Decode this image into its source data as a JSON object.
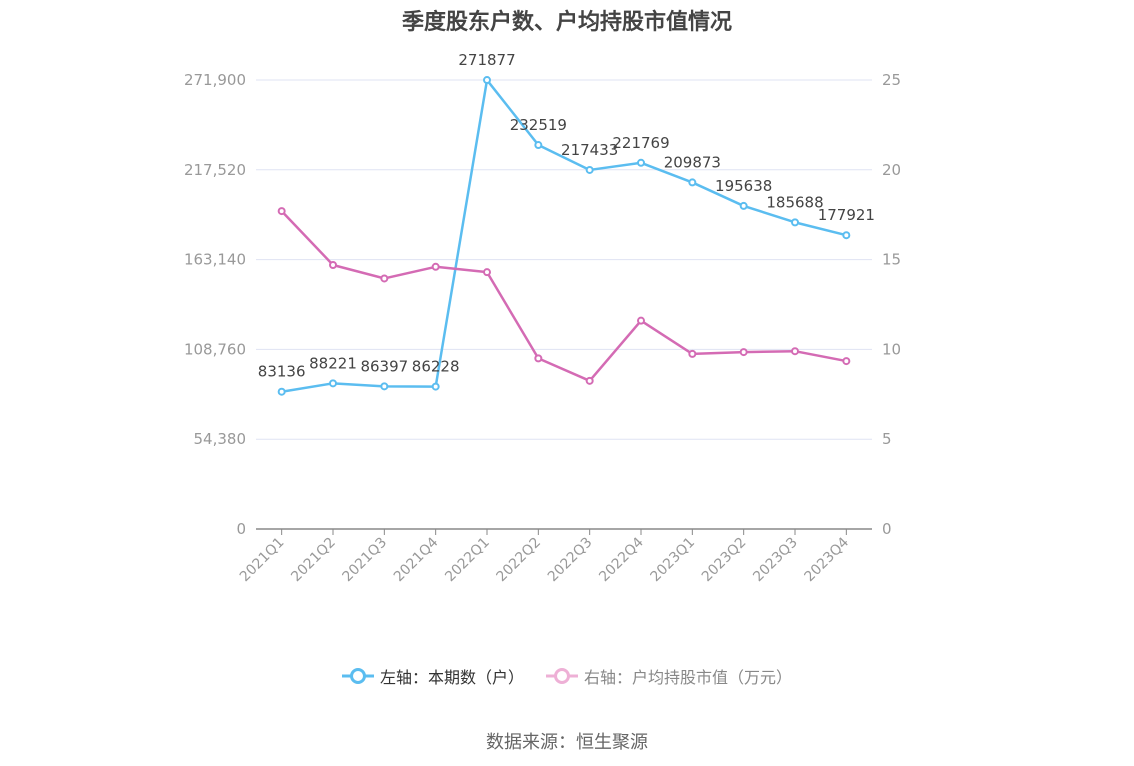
{
  "title": "季度股东户数、户均持股市值情况",
  "source": "数据来源：恒生聚源",
  "legend": {
    "left": "左轴：本期数（户）",
    "right": "右轴：户均持股市值（万元）"
  },
  "colors": {
    "left_series": "#5bbdf0",
    "right_series": "#d46bb4",
    "right_legend": "#eeb0d6",
    "grid": "#dfe3f3",
    "axis_text": "#999999"
  },
  "chart_data": {
    "type": "line",
    "title": "季度股东户数、户均持股市值情况",
    "categories": [
      "2021Q1",
      "2021Q2",
      "2021Q3",
      "2021Q4",
      "2022Q1",
      "2022Q2",
      "2022Q3",
      "2022Q4",
      "2023Q1",
      "2023Q2",
      "2023Q3",
      "2023Q4"
    ],
    "left_axis": {
      "ticks": [
        0,
        54380,
        108760,
        163140,
        217520,
        271900
      ],
      "tick_labels": [
        "0",
        "54,380",
        "108,760",
        "163,140",
        "217,520",
        "271,900"
      ],
      "range": [
        0,
        271900
      ]
    },
    "right_axis": {
      "ticks": [
        0,
        5,
        10,
        15,
        20,
        25
      ],
      "tick_labels": [
        "0",
        "5",
        "10",
        "15",
        "20",
        "25"
      ],
      "range": [
        0,
        25
      ]
    },
    "series": [
      {
        "name": "本期数（户）",
        "axis": "left",
        "values": [
          83136,
          88221,
          86397,
          86228,
          271877,
          232519,
          217433,
          221769,
          209873,
          195638,
          185688,
          177921
        ],
        "labels": [
          "83136",
          "88221",
          "86397",
          "86228",
          "271877",
          "232519",
          "217433",
          "221769",
          "209873",
          "195638",
          "185688",
          "177921"
        ]
      },
      {
        "name": "户均持股市值（万元）",
        "axis": "right",
        "values": [
          17.7,
          14.7,
          13.95,
          14.6,
          14.3,
          9.5,
          8.25,
          11.6,
          9.75,
          9.85,
          9.9,
          9.35
        ]
      }
    ],
    "grid": true,
    "legend_position": "bottom"
  }
}
